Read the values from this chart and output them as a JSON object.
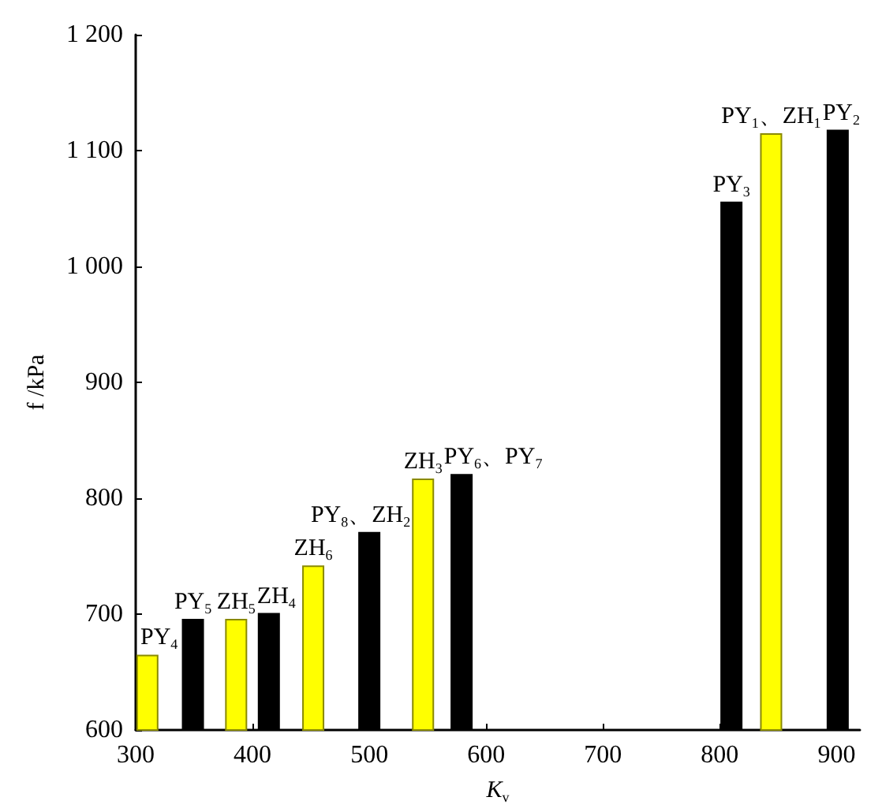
{
  "chart_data": {
    "type": "bar",
    "xlabel": "K$_{v}$",
    "ylabel": "f /kPa",
    "x": [
      310,
      349,
      386,
      414,
      452,
      500,
      546,
      579,
      810,
      844,
      901
    ],
    "values": [
      665,
      696,
      696,
      701,
      742,
      771,
      817,
      821,
      1056,
      1115,
      1118
    ],
    "colors": [
      "#ffff00",
      "#000000",
      "#ffff00",
      "#000000",
      "#ffff00",
      "#000000",
      "#ffff00",
      "#000000",
      "#000000",
      "#ffff00",
      "#000000"
    ],
    "xlim": [
      300,
      920
    ],
    "xticks": [
      300,
      400,
      500,
      600,
      700,
      800,
      900
    ],
    "ylim": [
      600,
      1200
    ],
    "yticks": [
      600,
      700,
      800,
      900,
      {
        "value": 1000,
        "label": "1 000"
      },
      {
        "value": 1100,
        "label": "1 100"
      },
      {
        "value": 1200,
        "label": "1 200"
      }
    ],
    "grid": false,
    "annotations": [
      {
        "text": "PY$_{4}$",
        "x": 310,
        "y": 665
      },
      {
        "text": "PY$_{5}$",
        "x": 349,
        "y": 696
      },
      {
        "text": "ZH$_{5}$",
        "x": 386,
        "y": 696
      },
      {
        "text": "ZH$_{4}$",
        "x": 414,
        "y": 701
      },
      {
        "text": "ZH$_{6}$",
        "x": 452,
        "y": 742
      },
      {
        "text": "PY$_{8}$、ZH$_{2}$",
        "x": 500,
        "y": 771
      },
      {
        "text": "ZH$_{3}$",
        "x": 546,
        "y": 817
      },
      {
        "text": "PY$_{6}$、PY$_{7}$",
        "x": 579,
        "y": 821
      },
      {
        "text": "PY$_{3}$",
        "x": 810,
        "y": 1056
      },
      {
        "text": "PY$_{1}$、ZH$_{1}$",
        "x": 844,
        "y": 1115
      },
      {
        "text": "PY$_{2}$",
        "x": 901,
        "y": 1118
      }
    ]
  }
}
